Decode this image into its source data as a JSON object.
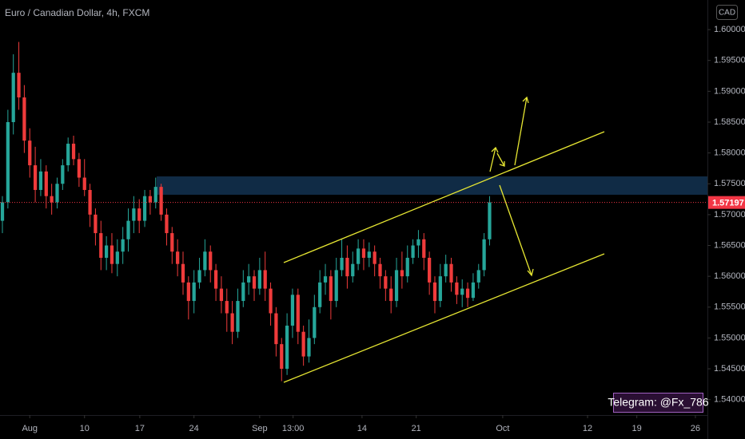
{
  "chart_data": {
    "type": "candlestick",
    "title": "Euro / Canadian Dollar, 4h, FXCM",
    "currency": "CAD",
    "watermark": "Telegram: @Fx_786",
    "up_color": "#26a69a",
    "down_color": "#ef3b3b",
    "last_price": 1.57197,
    "last_price_color": "#f23645",
    "grid": false,
    "xlim": [
      -0.44,
      128.8
    ],
    "ylim": [
      1.5375,
      1.6048
    ],
    "yticks": [
      {
        "value": 1.54,
        "label": "1.54000"
      },
      {
        "value": 1.545,
        "label": "1.54500"
      },
      {
        "value": 1.55,
        "label": "1.55000"
      },
      {
        "value": 1.555,
        "label": "1.55500"
      },
      {
        "value": 1.56,
        "label": "1.56000"
      },
      {
        "value": 1.565,
        "label": "1.56500"
      },
      {
        "value": 1.57,
        "label": "1.57000"
      },
      {
        "value": 1.575,
        "label": "1.57500"
      },
      {
        "value": 1.58,
        "label": "1.58000"
      },
      {
        "value": 1.585,
        "label": "1.58500"
      },
      {
        "value": 1.59,
        "label": "1.59000"
      },
      {
        "value": 1.595,
        "label": "1.59500"
      },
      {
        "value": 1.6,
        "label": "1.60000"
      }
    ],
    "xticks": [
      {
        "value": 5,
        "label": "Aug"
      },
      {
        "value": 15,
        "label": "10"
      },
      {
        "value": 25.1,
        "label": "17"
      },
      {
        "value": 35,
        "label": "24"
      },
      {
        "value": 47,
        "label": "Sep"
      },
      {
        "value": 53.1,
        "label": "13:00"
      },
      {
        "value": 65.7,
        "label": "14"
      },
      {
        "value": 75.6,
        "label": "21"
      },
      {
        "value": 91.4,
        "label": "Oct"
      },
      {
        "value": 106.9,
        "label": "12"
      },
      {
        "value": 115.9,
        "label": "19"
      },
      {
        "value": 126.6,
        "label": "26"
      }
    ],
    "x": [
      0,
      1,
      2,
      3,
      4,
      5,
      6,
      7,
      8,
      9,
      10,
      11,
      12,
      13,
      14,
      15,
      16,
      17,
      18,
      19,
      20,
      21,
      22,
      23,
      24,
      25,
      26,
      27,
      28,
      29,
      30,
      31,
      32,
      33,
      34,
      35,
      36,
      37,
      38,
      39,
      40,
      41,
      42,
      43,
      44,
      45,
      46,
      47,
      48,
      49,
      50,
      51,
      52,
      53,
      54,
      55,
      56,
      57,
      58,
      59,
      60,
      61,
      62,
      63,
      64,
      65,
      66,
      67,
      68,
      69,
      70,
      71,
      72,
      73,
      74,
      75,
      76,
      77,
      78,
      79,
      80,
      81,
      82,
      83,
      84,
      85,
      86,
      87,
      88,
      89
    ],
    "open": [
      1.569,
      1.572,
      1.585,
      1.593,
      1.589,
      1.582,
      1.578,
      1.574,
      1.577,
      1.573,
      1.572,
      1.575,
      1.578,
      1.5815,
      1.579,
      1.576,
      1.574,
      1.57,
      1.567,
      1.563,
      1.565,
      1.562,
      1.564,
      1.566,
      1.569,
      1.571,
      1.569,
      1.573,
      1.572,
      1.5745,
      1.57,
      1.567,
      1.564,
      1.562,
      1.559,
      1.556,
      1.559,
      1.561,
      1.564,
      1.561,
      1.558,
      1.556,
      1.554,
      1.551,
      1.556,
      1.559,
      1.56,
      1.558,
      1.561,
      1.558,
      1.554,
      1.549,
      1.545,
      1.552,
      1.557,
      1.551,
      1.547,
      1.55,
      1.555,
      1.559,
      1.56,
      1.556,
      1.561,
      1.563,
      1.56,
      1.562,
      1.5645,
      1.563,
      1.564,
      1.562,
      1.56,
      1.558,
      1.556,
      1.561,
      1.56,
      1.563,
      1.565,
      1.566,
      1.563,
      1.559,
      1.556,
      1.56,
      1.562,
      1.559,
      1.557,
      1.558,
      1.5565,
      1.559,
      1.561,
      1.566
    ],
    "high": [
      1.573,
      1.587,
      1.596,
      1.598,
      1.591,
      1.584,
      1.581,
      1.579,
      1.578,
      1.575,
      1.576,
      1.579,
      1.5825,
      1.5828,
      1.58,
      1.579,
      1.575,
      1.571,
      1.569,
      1.5665,
      1.567,
      1.566,
      1.568,
      1.571,
      1.573,
      1.5725,
      1.574,
      1.574,
      1.576,
      1.575,
      1.571,
      1.568,
      1.566,
      1.564,
      1.56,
      1.561,
      1.563,
      1.566,
      1.565,
      1.562,
      1.56,
      1.558,
      1.556,
      1.558,
      1.561,
      1.562,
      1.561,
      1.563,
      1.564,
      1.559,
      1.555,
      1.55,
      1.554,
      1.558,
      1.558,
      1.552,
      1.553,
      1.557,
      1.561,
      1.562,
      1.561,
      1.563,
      1.566,
      1.565,
      1.564,
      1.566,
      1.566,
      1.5655,
      1.565,
      1.563,
      1.561,
      1.56,
      1.563,
      1.564,
      1.565,
      1.566,
      1.5675,
      1.567,
      1.564,
      1.56,
      1.562,
      1.5635,
      1.563,
      1.56,
      1.5595,
      1.559,
      1.5605,
      1.562,
      1.567,
      1.573
    ],
    "low": [
      1.567,
      1.571,
      1.583,
      1.587,
      1.58,
      1.576,
      1.572,
      1.573,
      1.571,
      1.57,
      1.571,
      1.574,
      1.577,
      1.578,
      1.5745,
      1.573,
      1.568,
      1.565,
      1.561,
      1.561,
      1.5605,
      1.56,
      1.562,
      1.564,
      1.567,
      1.567,
      1.568,
      1.57,
      1.571,
      1.569,
      1.565,
      1.562,
      1.56,
      1.557,
      1.553,
      1.554,
      1.558,
      1.56,
      1.559,
      1.556,
      1.554,
      1.551,
      1.549,
      1.55,
      1.555,
      1.557,
      1.556,
      1.557,
      1.556,
      1.552,
      1.547,
      1.543,
      1.544,
      1.55,
      1.549,
      1.5455,
      1.546,
      1.549,
      1.554,
      1.557,
      1.553,
      1.555,
      1.56,
      1.558,
      1.559,
      1.561,
      1.561,
      1.5615,
      1.56,
      1.558,
      1.556,
      1.554,
      1.555,
      1.558,
      1.559,
      1.562,
      1.563,
      1.561,
      1.557,
      1.554,
      1.555,
      1.559,
      1.5575,
      1.5555,
      1.555,
      1.555,
      1.556,
      1.558,
      1.56,
      1.565
    ],
    "close": [
      1.572,
      1.585,
      1.593,
      1.589,
      1.582,
      1.578,
      1.574,
      1.577,
      1.573,
      1.572,
      1.575,
      1.578,
      1.5815,
      1.579,
      1.576,
      1.574,
      1.57,
      1.567,
      1.563,
      1.565,
      1.562,
      1.564,
      1.566,
      1.569,
      1.571,
      1.569,
      1.573,
      1.572,
      1.5745,
      1.57,
      1.567,
      1.564,
      1.562,
      1.559,
      1.556,
      1.559,
      1.561,
      1.564,
      1.561,
      1.558,
      1.556,
      1.554,
      1.551,
      1.556,
      1.559,
      1.56,
      1.558,
      1.561,
      1.558,
      1.554,
      1.549,
      1.545,
      1.552,
      1.557,
      1.551,
      1.547,
      1.55,
      1.555,
      1.559,
      1.56,
      1.556,
      1.561,
      1.563,
      1.56,
      1.562,
      1.5645,
      1.563,
      1.564,
      1.562,
      1.56,
      1.558,
      1.556,
      1.561,
      1.56,
      1.563,
      1.565,
      1.566,
      1.563,
      1.559,
      1.556,
      1.56,
      1.562,
      1.559,
      1.557,
      1.558,
      1.5565,
      1.559,
      1.561,
      1.566,
      1.572
    ]
  }
}
